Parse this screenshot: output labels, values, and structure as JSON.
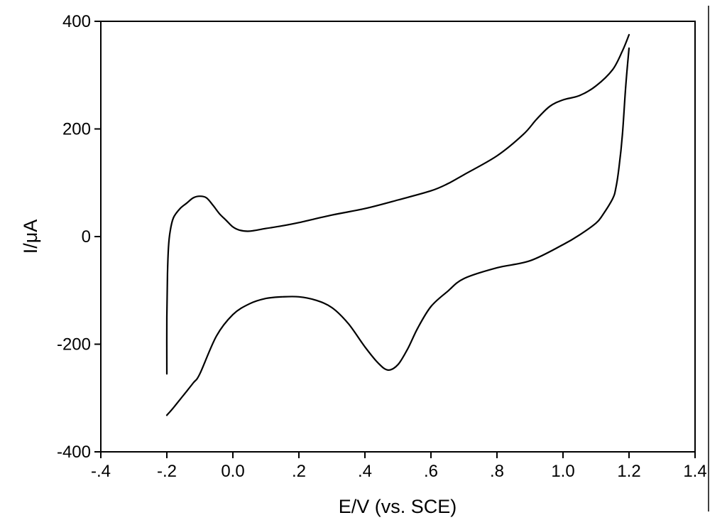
{
  "chart_data": {
    "type": "line",
    "title": "",
    "xlabel": "E/V (vs. SCE)",
    "ylabel": "I/μA",
    "xlim": [
      -0.4,
      1.4
    ],
    "ylim": [
      -400,
      400
    ],
    "x_ticks": [
      {
        "value": -0.4,
        "label": "-.4"
      },
      {
        "value": -0.2,
        "label": "-.2"
      },
      {
        "value": 0.0,
        "label": "0.0"
      },
      {
        "value": 0.2,
        "label": ".2"
      },
      {
        "value": 0.4,
        "label": ".4"
      },
      {
        "value": 0.6,
        "label": ".6"
      },
      {
        "value": 0.8,
        "label": ".8"
      },
      {
        "value": 1.0,
        "label": "1.0"
      },
      {
        "value": 1.2,
        "label": "1.2"
      },
      {
        "value": 1.4,
        "label": "1.4"
      }
    ],
    "y_ticks": [
      {
        "value": 400,
        "label": "400"
      },
      {
        "value": 200,
        "label": "200"
      },
      {
        "value": 0,
        "label": "0"
      },
      {
        "value": -200,
        "label": "-200"
      },
      {
        "value": -400,
        "label": "-400"
      }
    ],
    "grid": false,
    "series": [
      {
        "x": [
          -0.2,
          -0.2,
          -0.198,
          -0.195,
          -0.19,
          -0.18,
          -0.16,
          -0.14,
          -0.12,
          -0.1,
          -0.08,
          -0.06,
          -0.04,
          -0.02,
          0.0,
          0.02,
          0.05,
          0.1,
          0.15,
          0.2,
          0.3,
          0.4,
          0.5,
          0.6,
          0.65,
          0.7,
          0.8,
          0.88,
          0.92,
          0.96,
          1.0,
          1.05,
          1.1,
          1.15,
          1.18,
          1.2
        ],
        "y": [
          -255,
          -150,
          -70,
          -20,
          10,
          35,
          52,
          62,
          72,
          75,
          72,
          58,
          42,
          30,
          18,
          12,
          10,
          15,
          20,
          26,
          40,
          52,
          68,
          85,
          98,
          115,
          150,
          190,
          218,
          242,
          254,
          262,
          280,
          310,
          345,
          375
        ]
      },
      {
        "x": [
          1.2,
          1.19,
          1.18,
          1.17,
          1.16,
          1.15,
          1.12,
          1.1,
          1.05,
          1.0,
          0.9,
          0.8,
          0.7,
          0.65,
          0.6,
          0.56,
          0.53,
          0.5,
          0.47,
          0.44,
          0.4,
          0.35,
          0.3,
          0.25,
          0.2,
          0.15,
          0.1,
          0.05,
          0.0,
          -0.05,
          -0.1,
          -0.12,
          -0.15,
          -0.18,
          -0.2
        ],
        "y": [
          350,
          280,
          190,
          130,
          90,
          70,
          40,
          25,
          3,
          -15,
          -45,
          -58,
          -78,
          -102,
          -130,
          -170,
          -208,
          -238,
          -248,
          -235,
          -205,
          -162,
          -132,
          -118,
          -112,
          -112,
          -115,
          -125,
          -145,
          -185,
          -255,
          -272,
          -295,
          -318,
          -332
        ]
      }
    ]
  }
}
